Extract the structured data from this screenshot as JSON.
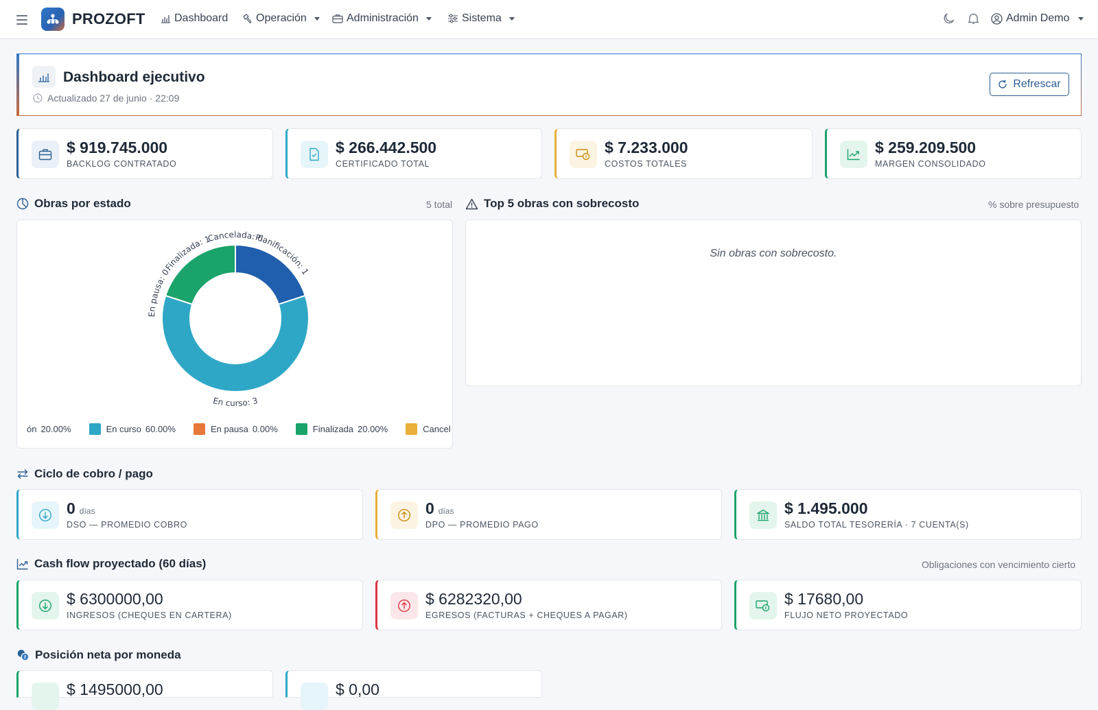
{
  "nav": {
    "brand": "PROZOFT",
    "items": [
      {
        "label": "Dashboard"
      },
      {
        "label": "Operación"
      },
      {
        "label": "Administración"
      },
      {
        "label": "Sistema"
      }
    ],
    "user": "Admin Demo"
  },
  "header": {
    "title": "Dashboard ejecutivo",
    "updated": "Actualizado 27 de junio · 22:09",
    "refresh_label": "Refrescar"
  },
  "kpis": [
    {
      "value": "$ 919.745.000",
      "label": "BACKLOG CONTRATADO",
      "icon": "briefcase-icon",
      "color": "#2b5f93"
    },
    {
      "value": "$ 266.442.500",
      "label": "CERTIFICADO TOTAL",
      "icon": "file-check-icon",
      "color": "#2ea7c6"
    },
    {
      "value": "$ 7.233.000",
      "label": "COSTOS TOTALES",
      "icon": "cash-icon",
      "color": "#e8b03a"
    },
    {
      "value": "$ 259.209.500",
      "label": "MARGEN CONSOLIDADO",
      "icon": "trend-up-icon",
      "color": "#1aa36a"
    }
  ],
  "obras": {
    "title": "Obras por estado",
    "total": "5 total"
  },
  "chart_data": {
    "type": "pie",
    "donut": true,
    "categories": [
      "Planificación",
      "En curso",
      "En pausa",
      "Finalizada",
      "Cancelada"
    ],
    "values": [
      1,
      3,
      0,
      1,
      0
    ],
    "slice_labels": [
      "Planificación: 1",
      "En curso: 3",
      "En pausa: 0",
      "Finalizada: 1",
      "Cancelada: 0"
    ],
    "colors": [
      "#1f5fad",
      "#2ea7c6",
      "#e8773a",
      "#1aa36a",
      "#e8b03a"
    ],
    "legend": [
      {
        "name": "ón",
        "pct": "20.00%"
      },
      {
        "name": "En curso",
        "pct": "60.00%"
      },
      {
        "name": "En pausa",
        "pct": "0.00%"
      },
      {
        "name": "Finalizada",
        "pct": "20.00%"
      },
      {
        "name": "Cancel",
        "pct": ""
      }
    ],
    "legend_placement": "bottom"
  },
  "sobrecosto": {
    "title": "Top 5 obras con sobrecosto",
    "note": "% sobre presupuesto",
    "empty": "Sin obras con sobrecosto."
  },
  "ciclo": {
    "title": "Ciclo de cobro / pago",
    "cards": [
      {
        "value": "0",
        "unit": "días",
        "label": "DSO — PROMEDIO COBRO",
        "icon": "arrow-down-circle-icon",
        "color": "#2ea7c6"
      },
      {
        "value": "0",
        "unit": "días",
        "label": "DPO — PROMEDIO PAGO",
        "icon": "arrow-up-circle-icon",
        "color": "#e8b03a"
      },
      {
        "value": "$ 1.495.000",
        "unit": "",
        "label": "SALDO TOTAL TESORERÍA · 7 CUENTA(S)",
        "icon": "bank-icon",
        "color": "#1aa36a"
      }
    ]
  },
  "cashflow": {
    "title": "Cash flow proyectado (60 días)",
    "note": "Obligaciones con vencimiento cierto",
    "cards": [
      {
        "value": "$ 6300000,00",
        "label": "INGRESOS (CHEQUES EN CARTERA)",
        "icon": "arrow-down-circle-icon",
        "color": "#1aa36a"
      },
      {
        "value": "$ 6282320,00",
        "label": "EGRESOS (FACTURAS + CHEQUES A PAGAR)",
        "icon": "arrow-up-circle-icon",
        "color": "#dc3545"
      },
      {
        "value": "$ 17680,00",
        "label": "FLUJO NETO PROYECTADO",
        "icon": "cash-icon",
        "color": "#1aa36a"
      }
    ]
  },
  "posicion": {
    "title": "Posición neta por moneda",
    "cards": [
      {
        "value": "$ 1495000,00",
        "color": "#1aa36a"
      },
      {
        "value": "$ 0,00",
        "color": "#2ea7c6"
      }
    ]
  }
}
